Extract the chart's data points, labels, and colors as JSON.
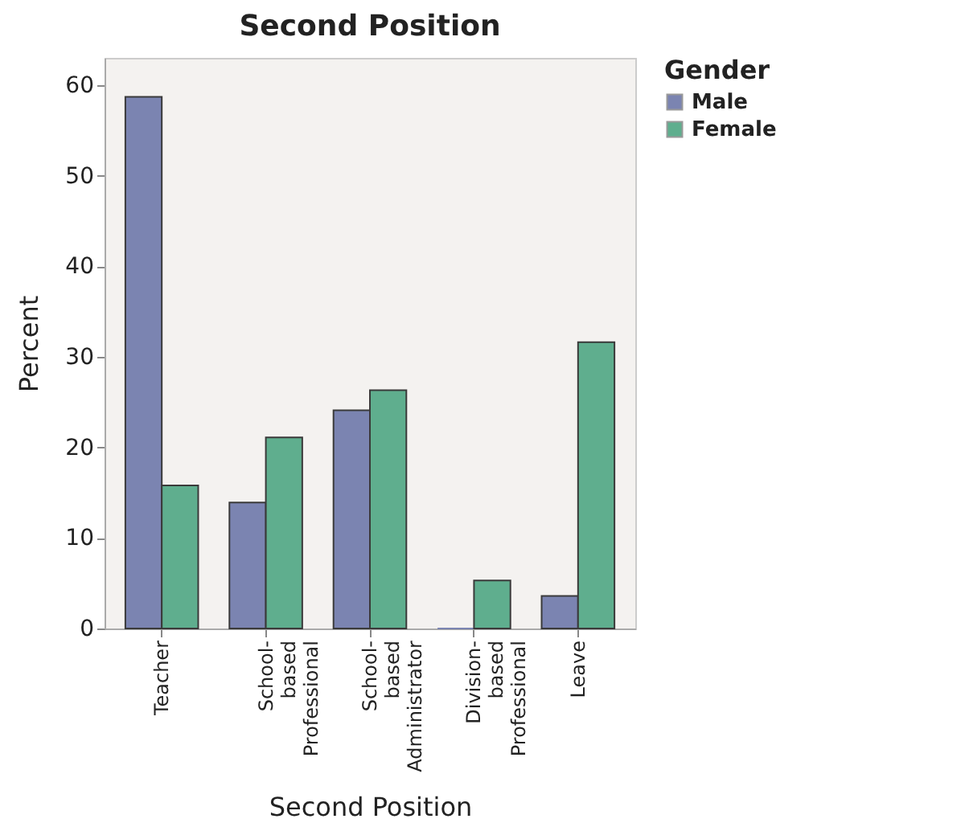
{
  "chart_data": {
    "type": "bar",
    "title": "Second Position",
    "xlabel": "Second Position",
    "ylabel": "Percent",
    "legend_title": "Gender",
    "legend": "top right",
    "grid": false,
    "categories": [
      "Teacher",
      "School-based Professional",
      "School-based Administrator",
      "Division-based Professional",
      "Leave"
    ],
    "ylim": [
      0,
      63
    ],
    "yticks": [
      0,
      10,
      20,
      30,
      40,
      50,
      60
    ],
    "series": [
      {
        "name": "Male",
        "color": "#7b84b1",
        "values": [
          58.7,
          13.9,
          24.1,
          0,
          3.6
        ]
      },
      {
        "name": "Female",
        "color": "#5fae8e",
        "values": [
          15.8,
          21.1,
          26.3,
          5.3,
          31.6
        ]
      }
    ]
  }
}
